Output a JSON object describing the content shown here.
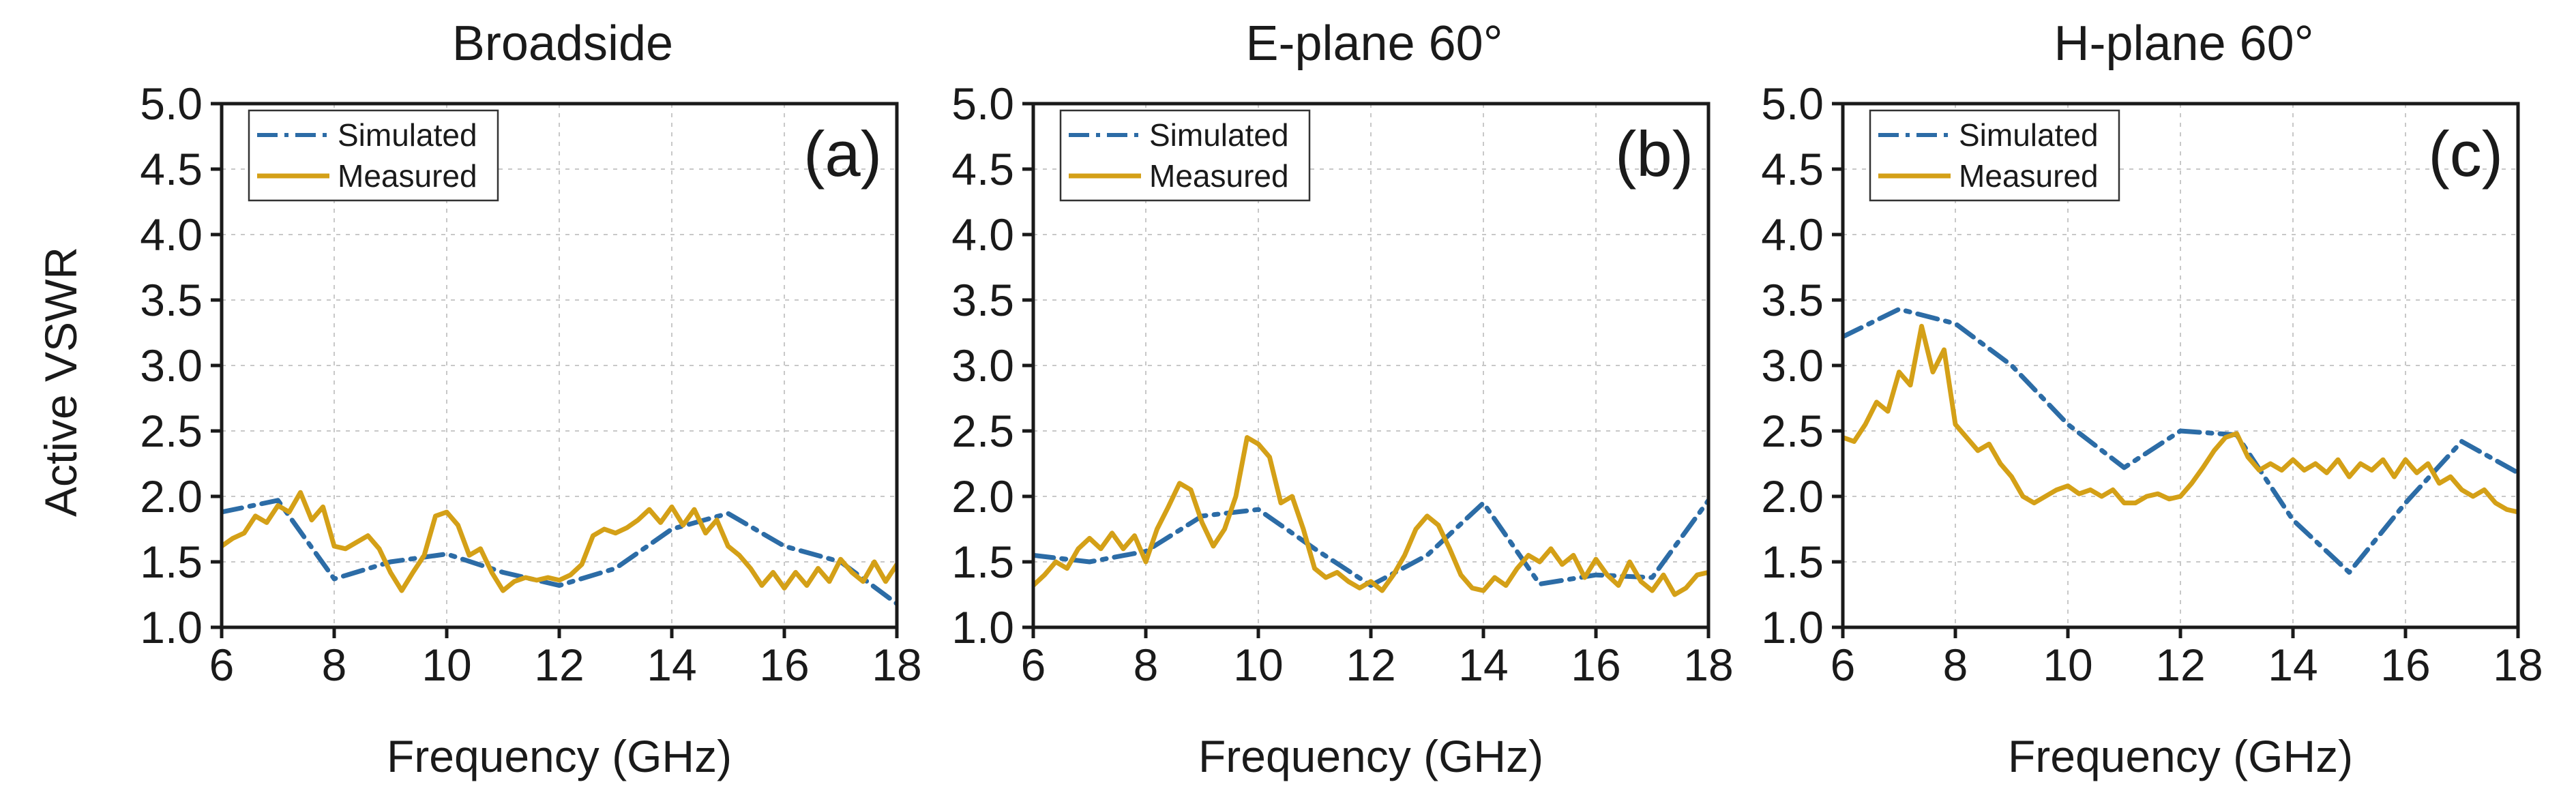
{
  "colors": {
    "simulated": "#2c6ca6",
    "measured": "#d4a017",
    "axis": "#1a1a1a",
    "grid": "#c8c8c8"
  },
  "ylabel": "Active VSWR",
  "legend": {
    "simulated": "Simulated",
    "measured": "Measured"
  },
  "chart_data": [
    {
      "type": "line",
      "title": "Broadside",
      "panel_label": "(a)",
      "xlabel": "Frequency (GHz)",
      "ylabel": "Active VSWR",
      "xlim": [
        6,
        18
      ],
      "ylim": [
        1.0,
        5.0
      ],
      "xticks": [
        6,
        8,
        10,
        12,
        14,
        16,
        18
      ],
      "yticks": [
        "1.0",
        "1.5",
        "2.0",
        "2.5",
        "3.0",
        "3.5",
        "4.0",
        "4.5",
        "5.0"
      ],
      "grid": true,
      "legend_position": "top-left",
      "series": [
        {
          "name": "Simulated",
          "style": "dash-dot",
          "x": [
            6,
            7,
            8,
            9,
            10,
            11,
            12,
            13,
            14,
            15,
            16,
            17,
            18
          ],
          "y": [
            1.88,
            1.97,
            1.37,
            1.5,
            1.56,
            1.42,
            1.32,
            1.45,
            1.75,
            1.87,
            1.62,
            1.5,
            1.18
          ]
        },
        {
          "name": "Measured",
          "style": "solid",
          "x": [
            6,
            6.2,
            6.4,
            6.6,
            6.8,
            7,
            7.2,
            7.4,
            7.6,
            7.8,
            8,
            8.2,
            8.4,
            8.6,
            8.8,
            9,
            9.2,
            9.4,
            9.6,
            9.8,
            10,
            10.2,
            10.4,
            10.6,
            10.8,
            11,
            11.2,
            11.4,
            11.6,
            11.8,
            12,
            12.2,
            12.4,
            12.6,
            12.8,
            13,
            13.2,
            13.4,
            13.6,
            13.8,
            14,
            14.2,
            14.4,
            14.6,
            14.8,
            15,
            15.2,
            15.4,
            15.6,
            15.8,
            16,
            16.2,
            16.4,
            16.6,
            16.8,
            17,
            17.2,
            17.4,
            17.6,
            17.8,
            18
          ],
          "y": [
            1.62,
            1.68,
            1.72,
            1.85,
            1.8,
            1.93,
            1.88,
            2.03,
            1.82,
            1.92,
            1.62,
            1.6,
            1.65,
            1.7,
            1.6,
            1.42,
            1.28,
            1.42,
            1.55,
            1.85,
            1.88,
            1.78,
            1.55,
            1.6,
            1.42,
            1.28,
            1.35,
            1.38,
            1.36,
            1.38,
            1.36,
            1.4,
            1.48,
            1.7,
            1.75,
            1.72,
            1.76,
            1.82,
            1.9,
            1.8,
            1.92,
            1.78,
            1.9,
            1.72,
            1.82,
            1.62,
            1.55,
            1.45,
            1.32,
            1.42,
            1.3,
            1.42,
            1.32,
            1.45,
            1.35,
            1.52,
            1.42,
            1.35,
            1.5,
            1.35,
            1.48
          ]
        }
      ]
    },
    {
      "type": "line",
      "title": "E-plane 60°",
      "panel_label": "(b)",
      "xlabel": "Frequency (GHz)",
      "ylabel": "",
      "xlim": [
        6,
        18
      ],
      "ylim": [
        1.0,
        5.0
      ],
      "xticks": [
        6,
        8,
        10,
        12,
        14,
        16,
        18
      ],
      "yticks": [
        "1.0",
        "1.5",
        "2.0",
        "2.5",
        "3.0",
        "3.5",
        "4.0",
        "4.5",
        "5.0"
      ],
      "grid": true,
      "legend_position": "top-left",
      "series": [
        {
          "name": "Simulated",
          "style": "dash-dot",
          "x": [
            6,
            7,
            8,
            9,
            10,
            11,
            12,
            13,
            14,
            15,
            16,
            17,
            18
          ],
          "y": [
            1.55,
            1.5,
            1.58,
            1.85,
            1.9,
            1.6,
            1.32,
            1.55,
            1.95,
            1.33,
            1.4,
            1.38,
            1.97
          ]
        },
        {
          "name": "Measured",
          "style": "solid",
          "x": [
            6,
            6.2,
            6.4,
            6.6,
            6.8,
            7,
            7.2,
            7.4,
            7.6,
            7.8,
            8,
            8.2,
            8.4,
            8.6,
            8.8,
            9,
            9.2,
            9.4,
            9.6,
            9.8,
            10,
            10.2,
            10.4,
            10.6,
            10.8,
            11,
            11.2,
            11.4,
            11.6,
            11.8,
            12,
            12.2,
            12.4,
            12.6,
            12.8,
            13,
            13.2,
            13.4,
            13.6,
            13.8,
            14,
            14.2,
            14.4,
            14.6,
            14.8,
            15,
            15.2,
            15.4,
            15.6,
            15.8,
            16,
            16.2,
            16.4,
            16.6,
            16.8,
            17,
            17.2,
            17.4,
            17.6,
            17.8,
            18
          ],
          "y": [
            1.32,
            1.4,
            1.5,
            1.45,
            1.6,
            1.68,
            1.6,
            1.72,
            1.6,
            1.7,
            1.5,
            1.75,
            1.92,
            2.1,
            2.05,
            1.8,
            1.62,
            1.75,
            2.0,
            2.45,
            2.4,
            2.3,
            1.95,
            2.0,
            1.75,
            1.45,
            1.38,
            1.42,
            1.35,
            1.3,
            1.35,
            1.28,
            1.4,
            1.55,
            1.75,
            1.85,
            1.78,
            1.6,
            1.4,
            1.3,
            1.28,
            1.38,
            1.32,
            1.45,
            1.55,
            1.5,
            1.6,
            1.48,
            1.55,
            1.38,
            1.52,
            1.4,
            1.32,
            1.5,
            1.35,
            1.28,
            1.4,
            1.25,
            1.3,
            1.4,
            1.42
          ]
        }
      ]
    },
    {
      "type": "line",
      "title": "H-plane 60°",
      "panel_label": "(c)",
      "xlabel": "Frequency (GHz)",
      "ylabel": "",
      "xlim": [
        6,
        18
      ],
      "ylim": [
        1.0,
        5.0
      ],
      "xticks": [
        6,
        8,
        10,
        12,
        14,
        16,
        18
      ],
      "yticks": [
        "1.0",
        "1.5",
        "2.0",
        "2.5",
        "3.0",
        "3.5",
        "4.0",
        "4.5",
        "5.0"
      ],
      "grid": true,
      "legend_position": "top-left",
      "series": [
        {
          "name": "Simulated",
          "style": "dash-dot",
          "x": [
            6,
            7,
            8,
            9,
            10,
            11,
            12,
            13,
            14,
            15,
            16,
            17,
            18
          ],
          "y": [
            3.22,
            3.43,
            3.32,
            3.0,
            2.55,
            2.22,
            2.5,
            2.47,
            1.82,
            1.42,
            1.95,
            2.42,
            2.18
          ]
        },
        {
          "name": "Measured",
          "style": "solid",
          "x": [
            6,
            6.2,
            6.4,
            6.6,
            6.8,
            7,
            7.2,
            7.4,
            7.6,
            7.8,
            8,
            8.2,
            8.4,
            8.6,
            8.8,
            9,
            9.2,
            9.4,
            9.6,
            9.8,
            10,
            10.2,
            10.4,
            10.6,
            10.8,
            11,
            11.2,
            11.4,
            11.6,
            11.8,
            12,
            12.2,
            12.4,
            12.6,
            12.8,
            13,
            13.2,
            13.4,
            13.6,
            13.8,
            14,
            14.2,
            14.4,
            14.6,
            14.8,
            15,
            15.2,
            15.4,
            15.6,
            15.8,
            16,
            16.2,
            16.4,
            16.6,
            16.8,
            17,
            17.2,
            17.4,
            17.6,
            17.8,
            18
          ],
          "y": [
            2.45,
            2.42,
            2.55,
            2.72,
            2.65,
            2.95,
            2.85,
            3.3,
            2.95,
            3.12,
            2.55,
            2.45,
            2.35,
            2.4,
            2.25,
            2.15,
            2.0,
            1.95,
            2.0,
            2.05,
            2.08,
            2.02,
            2.05,
            2.0,
            2.05,
            1.95,
            1.95,
            2.0,
            2.02,
            1.98,
            2.0,
            2.1,
            2.22,
            2.35,
            2.45,
            2.48,
            2.3,
            2.2,
            2.25,
            2.2,
            2.28,
            2.2,
            2.25,
            2.18,
            2.28,
            2.15,
            2.25,
            2.2,
            2.28,
            2.15,
            2.28,
            2.18,
            2.25,
            2.1,
            2.15,
            2.05,
            2.0,
            2.05,
            1.95,
            1.9,
            1.88
          ]
        }
      ]
    }
  ]
}
